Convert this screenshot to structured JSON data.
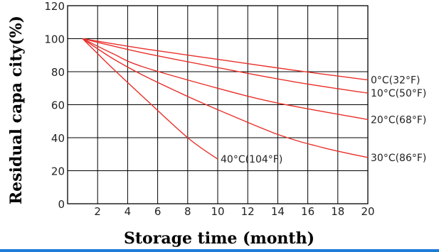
{
  "chart_data": {
    "type": "line",
    "title": "",
    "xlabel": "Storage time (month)",
    "ylabel": "Residual capa city(%)",
    "xlim": [
      0,
      20
    ],
    "ylim": [
      0,
      120
    ],
    "grid": true,
    "xticks": [
      "2",
      "4",
      "6",
      "8",
      "10",
      "12",
      "14",
      "16",
      "18",
      "20"
    ],
    "yticks": [
      "0",
      "20",
      "40",
      "60",
      "80",
      "100",
      "120"
    ],
    "line_color": "#e8302a",
    "series": [
      {
        "name": "0°C(32°F)",
        "x": [
          1,
          5,
          10,
          15,
          20
        ],
        "y": [
          100,
          94,
          87.5,
          81,
          75
        ]
      },
      {
        "name": "10°C(50°F)",
        "x": [
          1,
          5,
          10,
          15,
          20
        ],
        "y": [
          100,
          91.5,
          82.5,
          74,
          67
        ]
      },
      {
        "name": "20°C(68°F)",
        "x": [
          1,
          3,
          5,
          10,
          14,
          20
        ],
        "y": [
          100,
          91,
          83,
          70,
          61,
          51
        ]
      },
      {
        "name": "30°C(86°F)",
        "x": [
          1,
          3,
          5,
          8,
          10,
          14,
          17,
          20
        ],
        "y": [
          100,
          88,
          78,
          65,
          57,
          42,
          34,
          28
        ]
      },
      {
        "name": "40°C(104°F)",
        "x": [
          1,
          3,
          5,
          8,
          10
        ],
        "y": [
          100,
          82,
          65,
          40,
          27
        ]
      }
    ]
  },
  "bottom_rule_color": "#1f7bd8"
}
